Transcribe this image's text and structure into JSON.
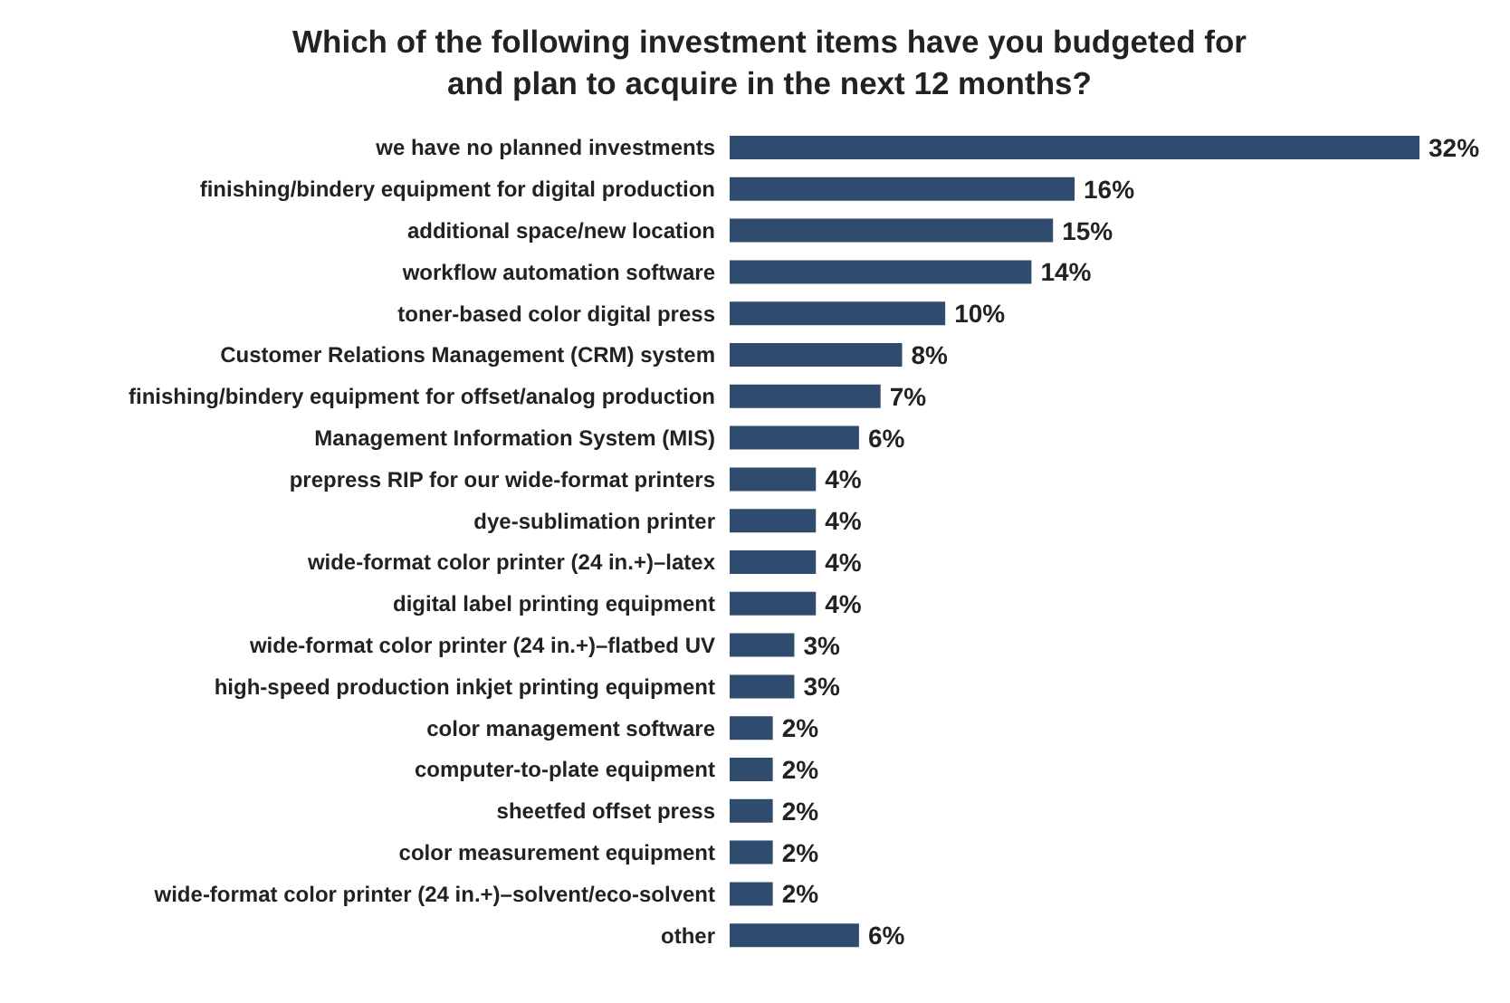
{
  "chart_data": {
    "type": "bar",
    "orientation": "horizontal",
    "title": "Which of the following investment items have you budgeted for and plan to acquire in the next 12 months?",
    "categories": [
      "we have no planned investments",
      "finishing/bindery equipment for digital production",
      "additional space/new location",
      "workflow automation software",
      "toner-based color digital press",
      "Customer Relations Management (CRM) system",
      "finishing/bindery equipment for offset/analog production",
      "Management Information System (MIS)",
      "prepress RIP for our wide-format printers",
      "dye-sublimation printer",
      "wide-format color printer (24 in.+)–latex",
      "digital label printing equipment",
      "wide-format color printer (24 in.+)–flatbed UV",
      "high-speed production inkjet printing equipment",
      "color management software",
      "computer-to-plate equipment",
      "sheetfed offset press",
      "color measurement equipment",
      "wide-format color printer (24 in.+)–solvent/eco-solvent",
      "other"
    ],
    "values": [
      32,
      16,
      15,
      14,
      10,
      8,
      7,
      6,
      4,
      4,
      4,
      4,
      3,
      3,
      2,
      2,
      2,
      2,
      2,
      6
    ],
    "value_labels": [
      "32%",
      "16%",
      "15%",
      "14%",
      "10%",
      "8%",
      "7%",
      "6%",
      "4%",
      "4%",
      "4%",
      "4%",
      "3%",
      "3%",
      "2%",
      "2%",
      "2%",
      "2%",
      "2%",
      "6%"
    ],
    "color": "#2f4b6e",
    "grid": false,
    "legend": false,
    "tick_labels": "y"
  }
}
